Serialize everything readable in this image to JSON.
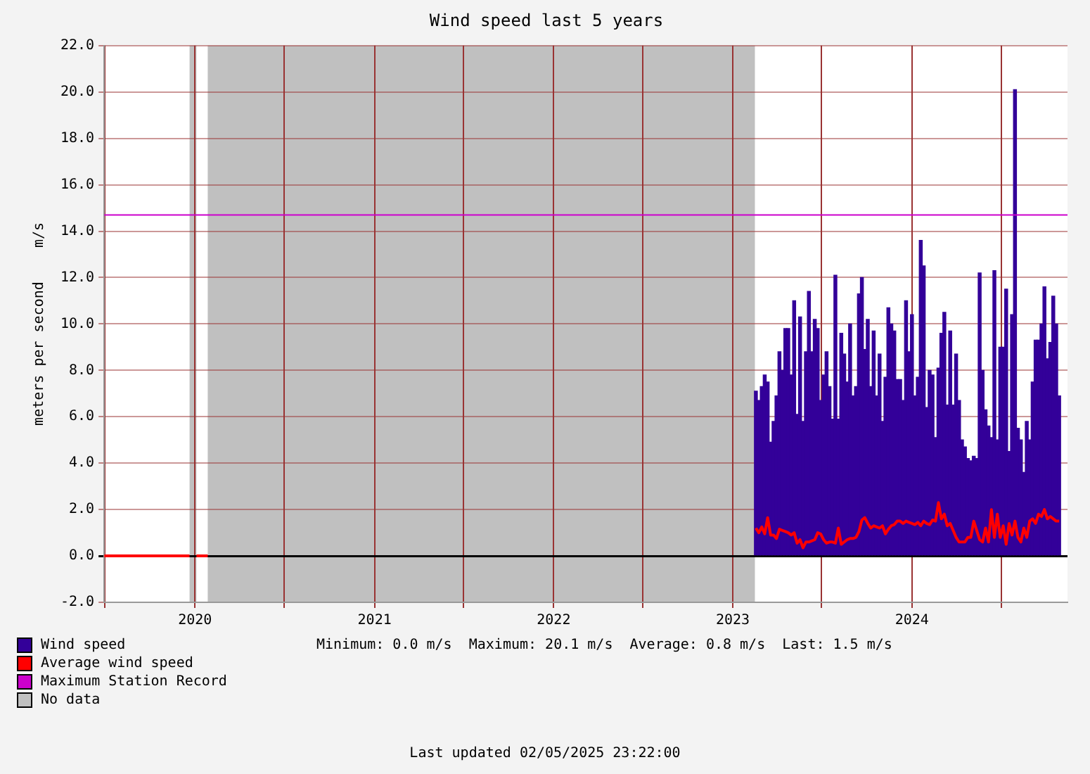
{
  "chart_data": {
    "type": "bar",
    "title": "Wind speed last 5 years",
    "ylabel": "meters per second    m/s",
    "annotations": [
      "Minimum: 0.0 m/s  Maximum: 20.1 m/s  Average: 0.8 m/s  Last: 1.5 m/s",
      "Last updated 02/05/2025 23:22:00",
      "No data"
    ],
    "xlim": [
      "2019-06-30",
      "2024-11-13"
    ],
    "xticks": [
      {
        "value": "2019-07-01",
        "label": null
      },
      {
        "value": "2020-01-01",
        "label": "2020"
      },
      {
        "value": "2020-07-01",
        "label": null
      },
      {
        "value": "2021-01-01",
        "label": "2021"
      },
      {
        "value": "2021-07-01",
        "label": null
      },
      {
        "value": "2022-01-01",
        "label": "2022"
      },
      {
        "value": "2022-07-01",
        "label": null
      },
      {
        "value": "2023-01-01",
        "label": "2023"
      },
      {
        "value": "2023-07-01",
        "label": null
      },
      {
        "value": "2024-01-01",
        "label": "2024"
      },
      {
        "value": "2024-07-01",
        "label": null
      }
    ],
    "ylim": [
      -2,
      22
    ],
    "yticks": [
      {
        "value": -2,
        "label": "-2.0"
      },
      {
        "value": 0,
        "label": "0.0"
      },
      {
        "value": 2,
        "label": "2.0"
      },
      {
        "value": 4,
        "label": "4.0"
      },
      {
        "value": 6,
        "label": "6.0"
      },
      {
        "value": 8,
        "label": "8.0"
      },
      {
        "value": 10,
        "label": "10.0"
      },
      {
        "value": 12,
        "label": "12.0"
      },
      {
        "value": 14,
        "label": "14.0"
      },
      {
        "value": 16,
        "label": "16.0"
      },
      {
        "value": 18,
        "label": "18.0"
      },
      {
        "value": 20,
        "label": "20.0"
      },
      {
        "value": 22,
        "label": "22.0"
      }
    ],
    "grid": true,
    "legend": "bottom left",
    "x": [
      "2023-02-17",
      "2023-02-23",
      "2023-03-01",
      "2023-03-07",
      "2023-03-13",
      "2023-03-19",
      "2023-03-25",
      "2023-03-31",
      "2023-04-06",
      "2023-04-12",
      "2023-04-18",
      "2023-04-24",
      "2023-04-30",
      "2023-05-06",
      "2023-05-12",
      "2023-05-18",
      "2023-05-24",
      "2023-05-30",
      "2023-06-05",
      "2023-06-11",
      "2023-06-17",
      "2023-06-23",
      "2023-06-29",
      "2023-07-05",
      "2023-07-11",
      "2023-07-17",
      "2023-07-23",
      "2023-07-29",
      "2023-08-04",
      "2023-08-10",
      "2023-08-16",
      "2023-08-22",
      "2023-08-28",
      "2023-09-03",
      "2023-09-09",
      "2023-09-15",
      "2023-09-21",
      "2023-09-27",
      "2023-10-03",
      "2023-10-09",
      "2023-10-15",
      "2023-10-21",
      "2023-10-27",
      "2023-11-02",
      "2023-11-08",
      "2023-11-14",
      "2023-11-20",
      "2023-11-26",
      "2023-12-02",
      "2023-12-08",
      "2023-12-14",
      "2023-12-20",
      "2023-12-26",
      "2024-01-01",
      "2024-01-07",
      "2024-01-13",
      "2024-01-19",
      "2024-01-25",
      "2024-01-31",
      "2024-02-06",
      "2024-02-12",
      "2024-02-18",
      "2024-02-24",
      "2024-03-01",
      "2024-03-07",
      "2024-03-13",
      "2024-03-19",
      "2024-03-25",
      "2024-03-31",
      "2024-04-06",
      "2024-04-12",
      "2024-04-18",
      "2024-04-24",
      "2024-04-30",
      "2024-05-06",
      "2024-05-12",
      "2024-05-18",
      "2024-05-24",
      "2024-05-30",
      "2024-06-05",
      "2024-06-11",
      "2024-06-17",
      "2024-06-23",
      "2024-06-29",
      "2024-07-05",
      "2024-07-11",
      "2024-07-17",
      "2024-07-23",
      "2024-07-29",
      "2024-08-04",
      "2024-08-10",
      "2024-08-16",
      "2024-08-22",
      "2024-08-28",
      "2024-09-03",
      "2024-09-09",
      "2024-09-15",
      "2024-09-21",
      "2024-09-27",
      "2024-10-03",
      "2024-10-09",
      "2024-10-15",
      "2024-10-21",
      "2024-10-27"
    ],
    "series": [
      {
        "name": "Wind speed",
        "color": "#330099",
        "values": [
          7.1,
          6.7,
          7.3,
          7.8,
          7.5,
          4.9,
          5.8,
          6.9,
          8.8,
          8.0,
          9.8,
          9.8,
          7.8,
          11.0,
          6.1,
          10.3,
          5.8,
          8.8,
          11.4,
          8.8,
          10.2,
          9.8,
          6.7,
          7.8,
          8.8,
          7.3,
          5.9,
          12.1,
          5.9,
          9.6,
          8.7,
          7.5,
          10.0,
          6.9,
          7.3,
          11.3,
          12.0,
          8.9,
          10.2,
          7.3,
          9.7,
          6.9,
          8.7,
          5.8,
          7.7,
          10.7,
          10.0,
          9.7,
          7.6,
          7.6,
          6.7,
          11.0,
          8.8,
          10.4,
          6.9,
          7.7,
          13.6,
          12.5,
          6.4,
          8.0,
          7.8,
          5.1,
          8.1,
          9.6,
          10.5,
          6.5,
          9.7,
          6.5,
          8.7,
          6.7,
          5.0,
          4.7,
          4.2,
          4.1,
          4.3,
          4.2,
          12.2,
          8.0,
          6.3,
          5.6,
          5.1,
          12.3,
          5.0,
          9.0,
          9.0,
          11.5,
          4.5,
          10.4,
          20.1,
          5.5,
          5.0,
          3.6,
          5.8,
          5.0,
          7.5,
          9.3,
          9.3,
          10.0,
          11.6,
          8.5,
          9.2,
          11.2,
          10.0,
          6.9
        ]
      },
      {
        "name": "Average wind speed",
        "type": "line",
        "color": "#ff0000",
        "x": [
          "2019-06-30",
          "2019-12-21",
          "2019-12-28",
          "2020-01-04",
          "2020-01-27",
          "2021-06-01",
          "2023-02-17",
          "2023-02-23",
          "2023-03-01",
          "2023-03-07",
          "2023-03-13",
          "2023-03-19",
          "2023-03-25",
          "2023-03-31",
          "2023-04-06",
          "2023-04-12",
          "2023-04-18",
          "2023-04-24",
          "2023-04-30",
          "2023-05-06",
          "2023-05-12",
          "2023-05-18",
          "2023-05-24",
          "2023-05-30",
          "2023-06-05",
          "2023-06-11",
          "2023-06-17",
          "2023-06-23",
          "2023-06-29",
          "2023-07-05",
          "2023-07-11",
          "2023-07-17",
          "2023-07-23",
          "2023-07-29",
          "2023-08-04",
          "2023-08-10",
          "2023-08-16",
          "2023-08-22",
          "2023-08-28",
          "2023-09-03",
          "2023-09-09",
          "2023-09-15",
          "2023-09-21",
          "2023-09-27",
          "2023-10-03",
          "2023-10-09",
          "2023-10-15",
          "2023-10-21",
          "2023-10-27",
          "2023-11-02",
          "2023-11-08",
          "2023-11-14",
          "2023-11-20",
          "2023-11-26",
          "2023-12-02",
          "2023-12-08",
          "2023-12-14",
          "2023-12-20",
          "2023-12-26",
          "2024-01-01",
          "2024-01-07",
          "2024-01-13",
          "2024-01-19",
          "2024-01-25",
          "2024-01-31",
          "2024-02-06",
          "2024-02-12",
          "2024-02-18",
          "2024-02-24",
          "2024-03-01",
          "2024-03-07",
          "2024-03-13",
          "2024-03-19",
          "2024-03-25",
          "2024-03-31",
          "2024-04-06",
          "2024-04-12",
          "2024-04-18",
          "2024-04-24",
          "2024-04-30",
          "2024-05-06",
          "2024-05-12",
          "2024-05-18",
          "2024-05-24",
          "2024-05-30",
          "2024-06-05",
          "2024-06-11",
          "2024-06-17",
          "2024-06-23",
          "2024-06-29",
          "2024-07-05",
          "2024-07-11",
          "2024-07-17",
          "2024-07-23",
          "2024-07-29",
          "2024-08-04",
          "2024-08-10",
          "2024-08-16",
          "2024-08-22",
          "2024-08-28",
          "2024-09-03",
          "2024-09-09",
          "2024-09-15",
          "2024-09-21",
          "2024-09-27",
          "2024-10-03",
          "2024-10-09",
          "2024-10-15",
          "2024-10-21",
          "2024-10-27"
        ],
        "values": [
          0,
          0,
          null,
          0,
          0,
          null,
          1.2,
          1.0,
          1.25,
          0.95,
          1.65,
          0.9,
          0.9,
          0.75,
          1.15,
          1.1,
          1.05,
          1.0,
          0.9,
          1.0,
          0.55,
          0.7,
          0.35,
          0.6,
          0.6,
          0.65,
          0.7,
          1.0,
          0.95,
          0.7,
          0.55,
          0.6,
          0.6,
          0.55,
          1.2,
          0.5,
          0.6,
          0.7,
          0.75,
          0.75,
          0.8,
          1.05,
          1.55,
          1.65,
          1.4,
          1.2,
          1.3,
          1.25,
          1.2,
          1.3,
          0.95,
          1.15,
          1.3,
          1.35,
          1.5,
          1.5,
          1.4,
          1.5,
          1.45,
          1.4,
          1.35,
          1.45,
          1.3,
          1.5,
          1.4,
          1.35,
          1.55,
          1.5,
          2.3,
          1.6,
          1.8,
          1.3,
          1.4,
          1.1,
          0.8,
          0.6,
          0.6,
          0.6,
          0.8,
          0.8,
          1.5,
          1.1,
          0.7,
          0.6,
          1.2,
          0.6,
          2.0,
          0.8,
          1.8,
          0.8,
          1.3,
          0.5,
          1.4,
          0.9,
          1.5,
          0.8,
          0.6,
          1.2,
          0.8,
          1.5,
          1.6,
          1.4,
          1.8,
          1.7,
          2.0,
          1.6,
          1.7,
          1.6,
          1.5,
          1.5
        ]
      }
    ],
    "ref_lines": [
      {
        "axis": "y",
        "value": 14.7,
        "label": "Maximum Station Record",
        "color": "#cc00cc"
      }
    ],
    "bands": [
      {
        "axis": "x",
        "from": "2019-12-21",
        "to": "2020-01-04",
        "color": "#c0c0c0"
      },
      {
        "axis": "x",
        "from": "2020-01-27",
        "to": "2023-02-15",
        "color": "#c0c0c0"
      }
    ]
  }
}
